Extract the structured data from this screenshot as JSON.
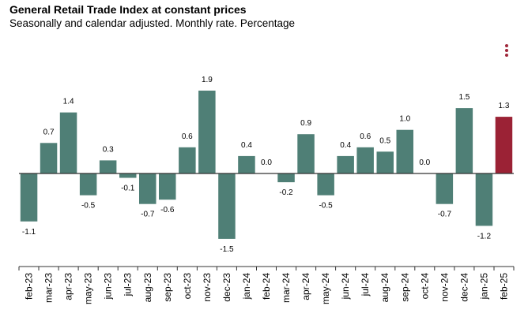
{
  "header": {
    "title": "General Retail Trade Index at constant prices",
    "subtitle": "Seasonally and calendar adjusted. Monthly rate. Percentage"
  },
  "menu": {
    "icon": "kebab-menu-icon",
    "color": "#a0283a"
  },
  "chart_data": {
    "type": "bar",
    "title": "General Retail Trade Index at constant prices",
    "subtitle": "Seasonally and calendar adjusted. Monthly rate. Percentage",
    "xlabel": "",
    "ylabel": "",
    "ylim": [
      -1.9,
      2.2
    ],
    "grid": false,
    "categories": [
      "feb-23",
      "mar-23",
      "apr-23",
      "may-23",
      "jun-23",
      "jul-23",
      "aug-23",
      "sep-23",
      "oct-23",
      "nov-23",
      "dec-23",
      "jan-24",
      "feb-24",
      "mar-24",
      "apr-24",
      "may-24",
      "jun-24",
      "jul-24",
      "aug-24",
      "sep-24",
      "oct-24",
      "nov-24",
      "dec-24",
      "jan-25",
      "feb-25"
    ],
    "values": [
      -1.1,
      0.7,
      1.4,
      -0.5,
      0.3,
      -0.1,
      -0.7,
      -0.6,
      0.6,
      1.9,
      -1.5,
      0.4,
      0.0,
      -0.2,
      0.9,
      -0.5,
      0.4,
      0.6,
      0.5,
      1.0,
      0.0,
      -0.7,
      1.5,
      -1.2,
      1.3
    ],
    "labels": [
      "-1.1",
      "0.7",
      "1.4",
      "-0.5",
      "0.3",
      "-0.1",
      "-0.7",
      "-0.6",
      "0.6",
      "1.9",
      "-1.5",
      "0.4",
      "0.0",
      "-0.2",
      "0.9",
      "-0.5",
      "0.4",
      "0.6",
      "0.5",
      "1.0",
      "0.0",
      "-0.7",
      "1.5",
      "-1.2",
      "1.3"
    ],
    "colors": {
      "default": "#4f7f76",
      "highlight": "#9b2235",
      "axis": "#333333"
    },
    "highlight_index": 24
  }
}
